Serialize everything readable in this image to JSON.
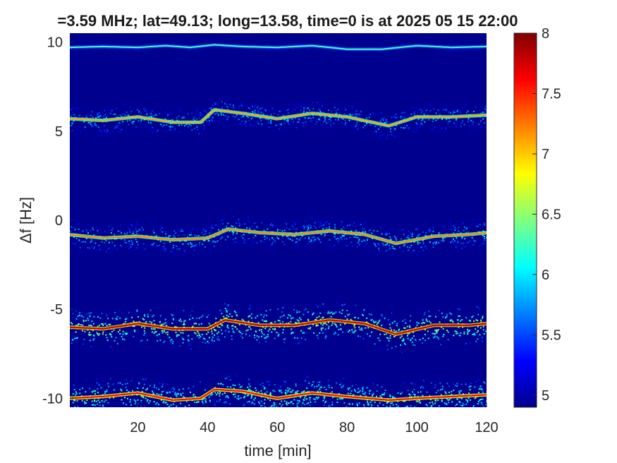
{
  "chart_data": {
    "type": "heatmap",
    "title": "=3.59 MHz;  lat=49.13; long=13.58, time=0 is at 2025 05 15 22:00",
    "xlabel": "time [min]",
    "ylabel": "Δf [Hz]",
    "xlim": [
      0.5,
      120
    ],
    "ylim": [
      -10.5,
      10.5
    ],
    "x_ticks": [
      "20",
      "40",
      "60",
      "80",
      "100",
      "120"
    ],
    "y_ticks": [
      "10",
      "5",
      "0",
      "-5",
      "-10"
    ],
    "colorbar": {
      "range": [
        4.9,
        8
      ],
      "ticks": [
        "5",
        "5.5",
        "6",
        "6.5",
        "7",
        "7.5",
        "8"
      ],
      "colormap": "jet"
    },
    "background_color": "#00008f",
    "series": [
      {
        "time": [
          0,
          10,
          20,
          28,
          35,
          42,
          50,
          60,
          70,
          80,
          90,
          100,
          110,
          120
        ],
        "df": [
          9.7,
          9.75,
          9.7,
          9.8,
          9.7,
          9.85,
          9.75,
          9.7,
          9.8,
          9.6,
          9.6,
          9.8,
          9.7,
          9.75
        ],
        "intensity": 6.0
      },
      {
        "time": [
          0,
          10,
          20,
          30,
          38,
          42,
          50,
          60,
          70,
          80,
          92,
          100,
          110,
          120
        ],
        "df": [
          5.7,
          5.6,
          5.8,
          5.5,
          5.5,
          6.2,
          6.0,
          5.7,
          6.0,
          5.8,
          5.3,
          5.8,
          5.8,
          5.9
        ],
        "intensity": 6.8
      },
      {
        "time": [
          0,
          10,
          20,
          30,
          40,
          46,
          55,
          65,
          75,
          85,
          94,
          105,
          115,
          120
        ],
        "df": [
          -0.8,
          -1.0,
          -0.9,
          -1.1,
          -1.0,
          -0.5,
          -0.7,
          -0.8,
          -0.6,
          -0.8,
          -1.3,
          -0.9,
          -0.8,
          -0.7
        ],
        "intensity": 6.9
      },
      {
        "time": [
          0,
          10,
          20,
          30,
          40,
          45,
          55,
          65,
          75,
          85,
          94,
          105,
          115,
          120
        ],
        "df": [
          -6.0,
          -6.1,
          -5.8,
          -6.1,
          -6.1,
          -5.6,
          -5.9,
          -5.9,
          -5.6,
          -5.8,
          -6.4,
          -5.9,
          -5.9,
          -5.8
        ],
        "intensity": 7.5
      },
      {
        "time": [
          0,
          10,
          20,
          30,
          38,
          42,
          50,
          60,
          70,
          80,
          92,
          100,
          110,
          120
        ],
        "df": [
          -10.0,
          -9.9,
          -9.7,
          -10.1,
          -10.0,
          -9.5,
          -9.6,
          -10.0,
          -9.7,
          -9.9,
          -10.1,
          -10.0,
          -9.9,
          -9.8
        ],
        "intensity": 7.3
      }
    ]
  }
}
